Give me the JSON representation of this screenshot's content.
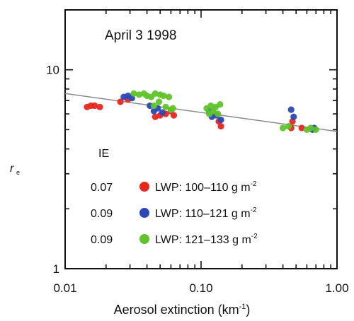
{
  "chart_data": {
    "type": "scatter",
    "title": "April 3 1998",
    "xlabel": "Aerosol extinction (km",
    "xlabel_sup": "-1",
    "xlabel_close": ")",
    "ylabel": "r",
    "ylabel_sub": "e",
    "x_scale": "log",
    "y_scale": "log",
    "xlim": [
      0.01,
      1.0
    ],
    "ylim": [
      1,
      20
    ],
    "x_ticks": [
      "0.01",
      "0.10",
      "1.00"
    ],
    "y_ticks": [
      "1",
      "10"
    ],
    "grid": false,
    "legend_header": "IE",
    "legend_placement": "bottom-left",
    "trend_line": {
      "x": [
        0.01,
        1.0
      ],
      "y": [
        7.6,
        4.9
      ],
      "color": "#8a8a8a"
    },
    "series": [
      {
        "ie": "0.07",
        "name": "LWP: 100–110 g m",
        "unit_sup": "-2",
        "color": "#e8281f",
        "points": [
          [
            0.0145,
            6.5
          ],
          [
            0.0155,
            6.6
          ],
          [
            0.0165,
            6.6
          ],
          [
            0.018,
            6.5
          ],
          [
            0.0255,
            6.9
          ],
          [
            0.029,
            7.1
          ],
          [
            0.046,
            5.8
          ],
          [
            0.05,
            5.9
          ],
          [
            0.055,
            6.0
          ],
          [
            0.06,
            6.2
          ],
          [
            0.063,
            5.9
          ],
          [
            0.135,
            5.5
          ],
          [
            0.14,
            5.2
          ],
          [
            0.46,
            5.1
          ],
          [
            0.47,
            5.5
          ],
          [
            0.55,
            5.1
          ]
        ]
      },
      {
        "ie": "0.09",
        "name": "LWP: 110–121 g m",
        "unit_sup": "-2",
        "color": "#2a48b8",
        "points": [
          [
            0.027,
            7.3
          ],
          [
            0.029,
            7.4
          ],
          [
            0.031,
            7.2
          ],
          [
            0.042,
            6.6
          ],
          [
            0.045,
            6.2
          ],
          [
            0.048,
            6.4
          ],
          [
            0.052,
            6.1
          ],
          [
            0.115,
            6.2
          ],
          [
            0.12,
            5.8
          ],
          [
            0.13,
            5.9
          ],
          [
            0.14,
            5.6
          ],
          [
            0.46,
            6.3
          ],
          [
            0.48,
            5.8
          ],
          [
            0.66,
            5.0
          ],
          [
            0.68,
            5.1
          ]
        ]
      },
      {
        "ie": "0.09",
        "name": "LWP: 121–133 g m",
        "unit_sup": "-2",
        "color": "#5ec42a",
        "points": [
          [
            0.032,
            7.6
          ],
          [
            0.035,
            7.5
          ],
          [
            0.038,
            7.6
          ],
          [
            0.04,
            7.4
          ],
          [
            0.043,
            7.3
          ],
          [
            0.045,
            6.6
          ],
          [
            0.046,
            7.6
          ],
          [
            0.049,
            6.9
          ],
          [
            0.05,
            7.5
          ],
          [
            0.053,
            7.4
          ],
          [
            0.055,
            6.5
          ],
          [
            0.058,
            7.3
          ],
          [
            0.06,
            6.3
          ],
          [
            0.062,
            6.4
          ],
          [
            0.11,
            6.4
          ],
          [
            0.115,
            6.0
          ],
          [
            0.118,
            6.6
          ],
          [
            0.123,
            6.2
          ],
          [
            0.128,
            6.5
          ],
          [
            0.133,
            6.0
          ],
          [
            0.138,
            6.7
          ],
          [
            0.4,
            5.1
          ],
          [
            0.44,
            5.2
          ],
          [
            0.6,
            5.0
          ],
          [
            0.64,
            5.1
          ],
          [
            0.7,
            5.0
          ]
        ]
      }
    ]
  }
}
